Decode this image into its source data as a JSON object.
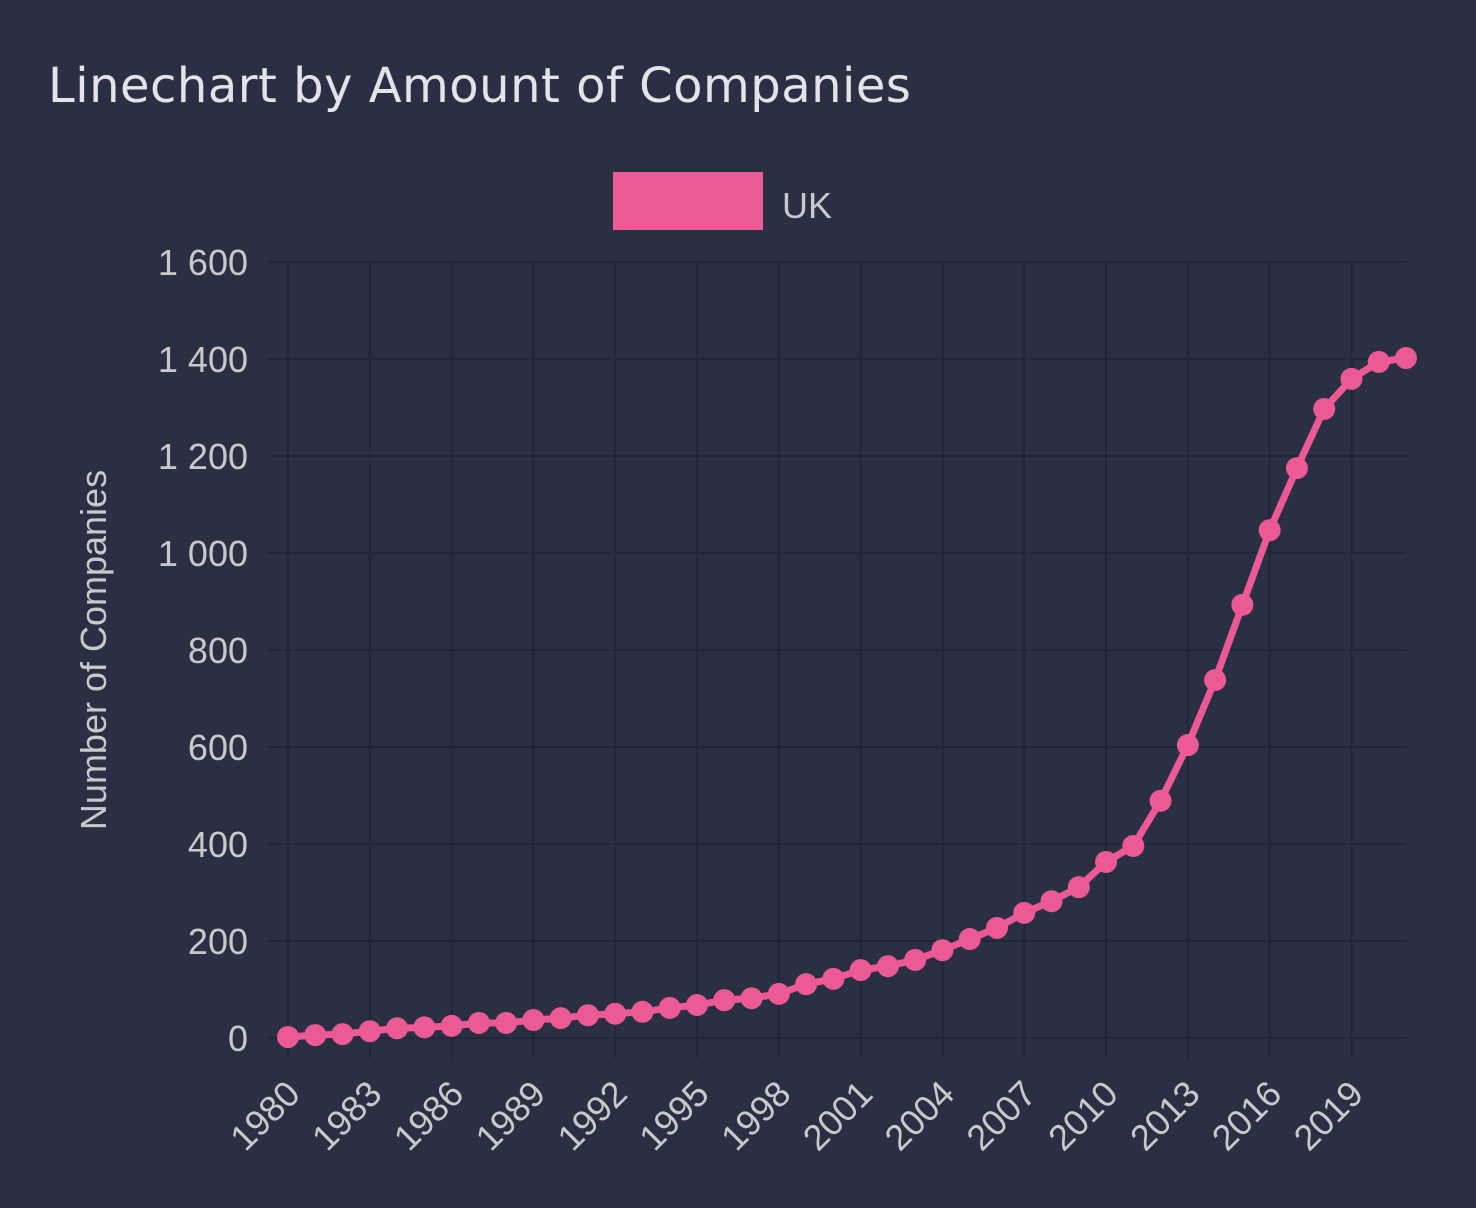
{
  "colors": {
    "background": "#2a2f43",
    "series": "#ec5a95",
    "grid": "#22263a",
    "text": "#c9c9cc"
  },
  "chart_data": {
    "type": "line",
    "title": "Linechart by Amount of Companies",
    "xlabel": "",
    "ylabel": "Number of Companies",
    "ylim": [
      0,
      1600
    ],
    "yticks": [
      "0",
      "200",
      "400",
      "600",
      "800",
      "1 000",
      "1 200",
      "1 400",
      "1 600"
    ],
    "ytick_values": [
      0,
      200,
      400,
      600,
      800,
      1000,
      1200,
      1400,
      1600
    ],
    "xticks": [
      "1980",
      "1983",
      "1986",
      "1989",
      "1992",
      "1995",
      "1998",
      "2001",
      "2004",
      "2007",
      "2010",
      "2013",
      "2016",
      "2019"
    ],
    "grid": true,
    "legend_position": "top-center",
    "x": [
      1980,
      1981,
      1982,
      1983,
      1984,
      1985,
      1986,
      1987,
      1988,
      1989,
      1990,
      1991,
      1992,
      1993,
      1994,
      1995,
      1996,
      1997,
      1998,
      1999,
      2000,
      2001,
      2002,
      2003,
      2004,
      2005,
      2006,
      2007,
      2008,
      2009,
      2010,
      2011,
      2012,
      2013,
      2014,
      2015,
      2016,
      2017,
      2018,
      2019,
      2020,
      2021
    ],
    "series": [
      {
        "name": "UK",
        "values": [
          2,
          6,
          8,
          14,
          20,
          22,
          25,
          31,
          31,
          37,
          41,
          47,
          50,
          54,
          62,
          68,
          78,
          82,
          91,
          111,
          122,
          140,
          148,
          161,
          181,
          204,
          227,
          258,
          282,
          311,
          363,
          396,
          489,
          604,
          738,
          893,
          1047,
          1175,
          1297,
          1359,
          1394,
          1402
        ]
      }
    ]
  }
}
